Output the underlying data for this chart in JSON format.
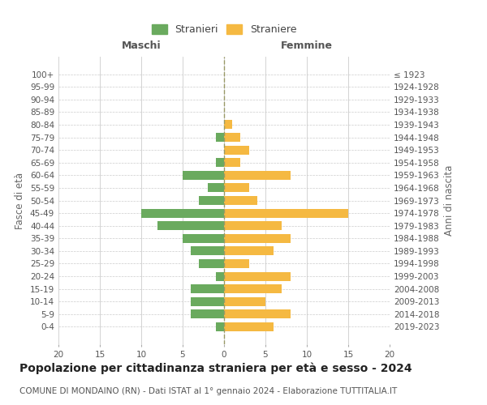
{
  "age_groups": [
    "100+",
    "95-99",
    "90-94",
    "85-89",
    "80-84",
    "75-79",
    "70-74",
    "65-69",
    "60-64",
    "55-59",
    "50-54",
    "45-49",
    "40-44",
    "35-39",
    "30-34",
    "25-29",
    "20-24",
    "15-19",
    "10-14",
    "5-9",
    "0-4"
  ],
  "birth_years": [
    "≤ 1923",
    "1924-1928",
    "1929-1933",
    "1934-1938",
    "1939-1943",
    "1944-1948",
    "1949-1953",
    "1954-1958",
    "1959-1963",
    "1964-1968",
    "1969-1973",
    "1974-1978",
    "1979-1983",
    "1984-1988",
    "1989-1993",
    "1994-1998",
    "1999-2003",
    "2004-2008",
    "2009-2013",
    "2014-2018",
    "2019-2023"
  ],
  "males": [
    0,
    0,
    0,
    0,
    0,
    1,
    0,
    1,
    5,
    2,
    3,
    10,
    8,
    5,
    4,
    3,
    1,
    4,
    4,
    4,
    1
  ],
  "females": [
    0,
    0,
    0,
    0,
    1,
    2,
    3,
    2,
    8,
    3,
    4,
    15,
    7,
    8,
    6,
    3,
    8,
    7,
    5,
    8,
    6
  ],
  "male_color": "#6aaa5e",
  "female_color": "#f5b942",
  "center_line_color": "#999966",
  "grid_color": "#cccccc",
  "background_color": "#ffffff",
  "title": "Popolazione per cittadinanza straniera per età e sesso - 2024",
  "subtitle": "COMUNE DI MONDAINO (RN) - Dati ISTAT al 1° gennaio 2024 - Elaborazione TUTTITALIA.IT",
  "left_header": "Maschi",
  "right_header": "Femmine",
  "left_axis_label": "Fasce di età",
  "right_axis_label": "Anni di nascita",
  "legend_male": "Stranieri",
  "legend_female": "Straniere",
  "xlim": 20,
  "bar_height": 0.7,
  "title_fontsize": 10,
  "subtitle_fontsize": 7.5,
  "tick_fontsize": 7.5,
  "header_fontsize": 9
}
